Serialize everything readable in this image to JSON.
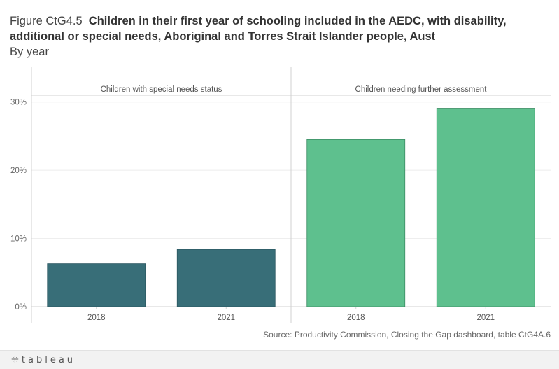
{
  "header": {
    "figure_label": "Figure CtG4.5",
    "title": "Children in their first year of schooling included in the AEDC, with disability, additional or special needs, Aboriginal and Torres Strait Islander people, Aust",
    "subtitle": "By year"
  },
  "chart_data": {
    "type": "bar",
    "ylim": [
      0,
      31
    ],
    "yticks": [
      0,
      10,
      20,
      30
    ],
    "ytick_labels": [
      "0%",
      "10%",
      "20%",
      "30%"
    ],
    "categories": [
      "2018",
      "2021"
    ],
    "panels": [
      {
        "title": "Children with special needs status",
        "color": "#386e78",
        "values": [
          6.3,
          8.4
        ]
      },
      {
        "title": "Children needing further assessment",
        "color": "#5ec08e",
        "values": [
          24.5,
          29.1
        ]
      }
    ]
  },
  "footer": {
    "source": "Source: Productivity Commission, Closing the Gap dashboard, table CtG4A.6",
    "logo_text": "tableau",
    "logo_mark": "⁜"
  }
}
